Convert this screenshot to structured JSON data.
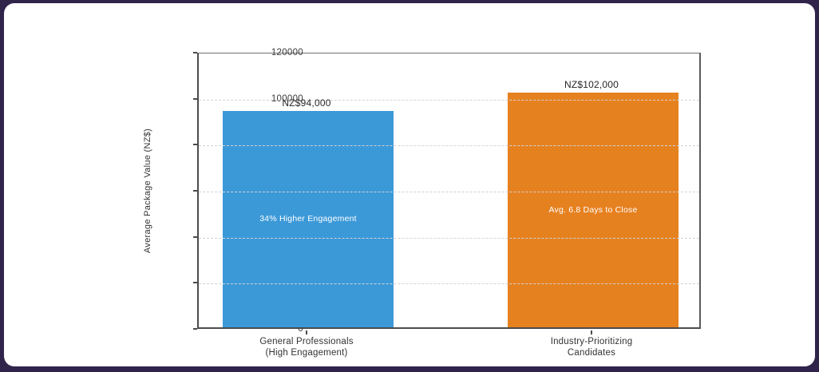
{
  "window": {
    "background_color": "#31244a",
    "canvas_color": "#ffffff"
  },
  "chart_data": {
    "type": "bar",
    "title": "",
    "xlabel": "",
    "ylabel": "Average Package Value (NZ$)",
    "ylim": [
      0,
      120000
    ],
    "yticks": [
      0,
      20000,
      40000,
      60000,
      80000,
      100000,
      120000
    ],
    "grid": "horizontal dashed",
    "legend": "none",
    "categories": [
      "General Professionals\n(High Engagement)",
      "Industry-Prioritizing\nCandidates"
    ],
    "values": [
      94000,
      102000
    ],
    "value_labels": [
      "NZ$94,000",
      "NZ$102,000"
    ],
    "bar_annotations": [
      "34% Higher Engagement",
      "Avg. 6.8 Days to Close"
    ],
    "bar_colors": [
      "#3c99d8",
      "#e68120"
    ],
    "gridline_color": "#d2d2d2",
    "annotation_text_color": "#ffffff"
  }
}
